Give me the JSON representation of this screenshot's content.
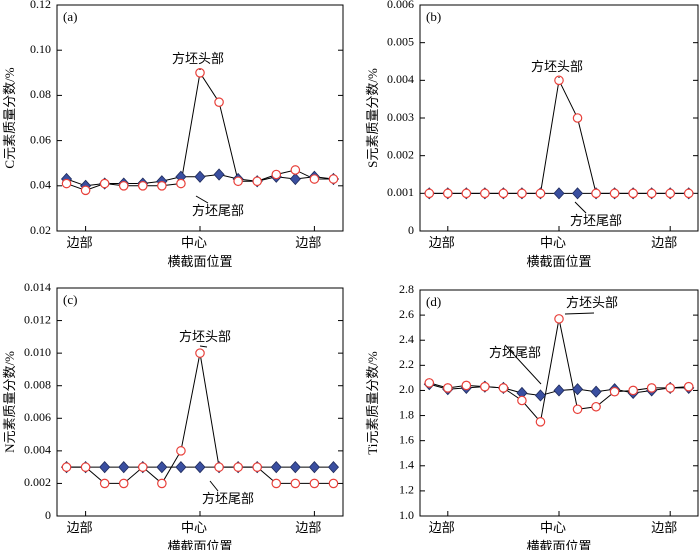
{
  "chart_data": [
    {
      "type": "line",
      "label": "(a)",
      "y_label": "C元素质量分数/%",
      "x_label": "横截面位置",
      "categories": [
        null,
        "边部",
        null,
        null,
        null,
        null,
        null,
        "中心",
        null,
        null,
        null,
        null,
        null,
        "边部",
        null
      ],
      "ylim": [
        0.02,
        0.12
      ],
      "yticks": [
        0.02,
        0.04,
        0.06,
        0.08,
        {
          "value": 0.1,
          "label": "0.10"
        },
        0.12
      ],
      "series": [
        {
          "name": "方坯头部",
          "color": "#e8403a",
          "marker": "circle",
          "values": [
            0.041,
            0.038,
            0.041,
            0.04,
            0.04,
            0.04,
            0.041,
            0.09,
            0.077,
            0.042,
            0.042,
            0.045,
            0.047,
            0.043,
            0.043
          ]
        },
        {
          "name": "方坯尾部",
          "color": "#3a4fa0",
          "marker": "diamond",
          "values": [
            0.043,
            0.04,
            0.041,
            0.041,
            0.041,
            0.042,
            0.044,
            0.044,
            0.045,
            0.043,
            0.042,
            0.044,
            0.043,
            0.044,
            0.043
          ]
        }
      ]
    },
    {
      "type": "line",
      "label": "(b)",
      "y_label": "S元素质量分数/%",
      "x_label": "横截面位置",
      "categories": [
        null,
        "边部",
        null,
        null,
        null,
        null,
        null,
        "中心",
        null,
        null,
        null,
        null,
        null,
        "边部",
        null
      ],
      "ylim": [
        0,
        0.006
      ],
      "yticks": [
        0,
        0.001,
        0.002,
        0.003,
        0.004,
        0.005,
        0.006
      ],
      "series": [
        {
          "name": "方坯头部",
          "color": "#e8403a",
          "marker": "circle",
          "values": [
            0.001,
            0.001,
            0.001,
            0.001,
            0.001,
            0.001,
            0.001,
            0.004,
            0.003,
            0.001,
            0.001,
            0.001,
            0.001,
            0.001,
            0.001
          ]
        },
        {
          "name": "方坯尾部",
          "color": "#3a4fa0",
          "marker": "diamond",
          "values": [
            0.001,
            0.001,
            0.001,
            0.001,
            0.001,
            0.001,
            0.001,
            0.001,
            0.001,
            0.001,
            0.001,
            0.001,
            0.001,
            0.001,
            0.001
          ]
        }
      ]
    },
    {
      "type": "line",
      "label": "(c)",
      "y_label": "N元素质量分数/%",
      "x_label": "横截面位置",
      "categories": [
        null,
        "边部",
        null,
        null,
        null,
        null,
        null,
        "中心",
        null,
        null,
        null,
        null,
        null,
        "边部",
        null
      ],
      "ylim": [
        0,
        0.014
      ],
      "yticks": [
        0,
        0.002,
        0.004,
        0.006,
        0.008,
        {
          "value": 0.01,
          "label": "0.010"
        },
        0.012,
        0.014
      ],
      "series": [
        {
          "name": "方坯头部",
          "color": "#e8403a",
          "marker": "circle",
          "values": [
            0.003,
            0.003,
            0.002,
            0.002,
            0.003,
            0.002,
            0.004,
            0.01,
            0.003,
            0.003,
            0.003,
            0.002,
            0.002,
            0.002,
            0.002
          ]
        },
        {
          "name": "方坯尾部",
          "color": "#3a4fa0",
          "marker": "diamond",
          "values": [
            0.003,
            0.003,
            0.003,
            0.003,
            0.003,
            0.003,
            0.003,
            0.003,
            0.003,
            0.003,
            0.003,
            0.003,
            0.003,
            0.003,
            0.003
          ]
        }
      ]
    },
    {
      "type": "line",
      "label": "(d)",
      "y_label": "Ti元素质量分数/%",
      "x_label": "横截面位置",
      "categories": [
        null,
        "边部",
        null,
        null,
        null,
        null,
        null,
        "中心",
        null,
        null,
        null,
        null,
        null,
        "边部",
        null
      ],
      "ylim": [
        1.0,
        2.8
      ],
      "yticks": [
        {
          "value": 1.0,
          "label": "1.0"
        },
        1.2,
        1.4,
        1.6,
        1.8,
        {
          "value": 2.0,
          "label": "2.0"
        },
        2.2,
        2.4,
        2.6,
        2.8
      ],
      "series": [
        {
          "name": "方坯头部",
          "color": "#e8403a",
          "marker": "circle",
          "values": [
            2.06,
            2.02,
            2.04,
            2.03,
            2.02,
            1.92,
            1.75,
            2.57,
            1.85,
            1.87,
            1.99,
            2.0,
            2.02,
            2.02,
            2.03
          ]
        },
        {
          "name": "方坯尾部",
          "color": "#3a4fa0",
          "marker": "diamond",
          "values": [
            2.05,
            2.01,
            2.02,
            2.03,
            2.02,
            1.98,
            1.96,
            2.0,
            2.01,
            1.99,
            2.01,
            1.98,
            2.0,
            2.02,
            2.02
          ]
        }
      ]
    }
  ]
}
